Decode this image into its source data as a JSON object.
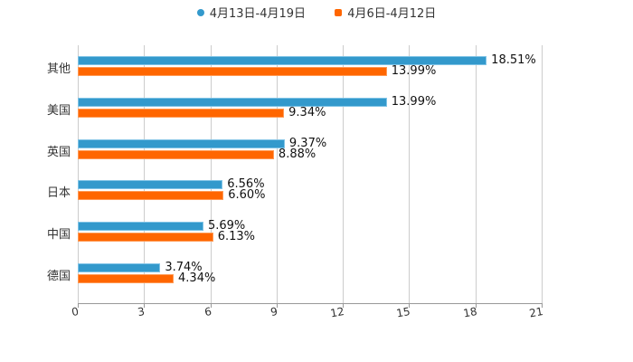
{
  "chart_data": {
    "type": "bar",
    "orientation": "horizontal",
    "title": "",
    "xlabel": "",
    "ylabel": "",
    "categories": [
      "其他",
      "美国",
      "英国",
      "日本",
      "中国",
      "德国"
    ],
    "series": [
      {
        "name": "4月13日-4月19日",
        "color": "#3399cc",
        "values": [
          18.51,
          13.99,
          9.37,
          6.56,
          5.69,
          3.74
        ]
      },
      {
        "name": "4月6日-4月12日",
        "color": "#ff6600",
        "values": [
          13.99,
          9.34,
          8.88,
          6.6,
          6.13,
          4.34
        ]
      }
    ],
    "value_labels": [
      [
        "18.51%",
        "13.99%",
        "9.37%",
        "6.56%",
        "5.69%",
        "3.74%"
      ],
      [
        "13.99%",
        "9.34%",
        "8.88%",
        "6.60%",
        "6.13%",
        "4.34%"
      ]
    ],
    "xlim": [
      0,
      21
    ],
    "x_ticks": [
      "0",
      "3",
      "6",
      "9",
      "12",
      "15",
      "18",
      "21"
    ],
    "grid": true,
    "legend_position": "top"
  },
  "legend": {
    "items": [
      {
        "label": "4月13日-4月19日",
        "color": "#3399cc",
        "shape": "circle"
      },
      {
        "label": "4月6日-4月12日",
        "color": "#ff6600",
        "shape": "square"
      }
    ]
  }
}
